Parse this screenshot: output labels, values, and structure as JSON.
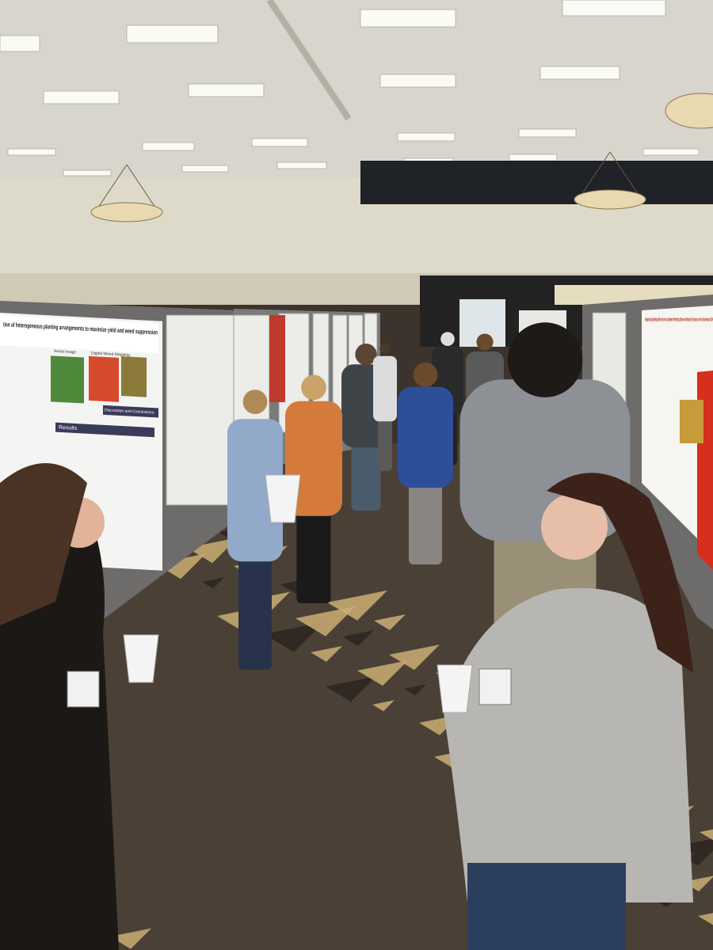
{
  "posters": [
    {
      "title": "tion of heterogeneous planting arrangements to maximize yield and weed suppression",
      "headings": [
        "Results",
        "Discussion and Conclusions"
      ],
      "figure_labels": [
        "Aerial Image",
        "Digital Weed Mapping"
      ]
    },
    {
      "title": "Adjusting Seeding Rate Across Soybean Planting Date and Maturity Groups in the Southeast USA"
    }
  ]
}
